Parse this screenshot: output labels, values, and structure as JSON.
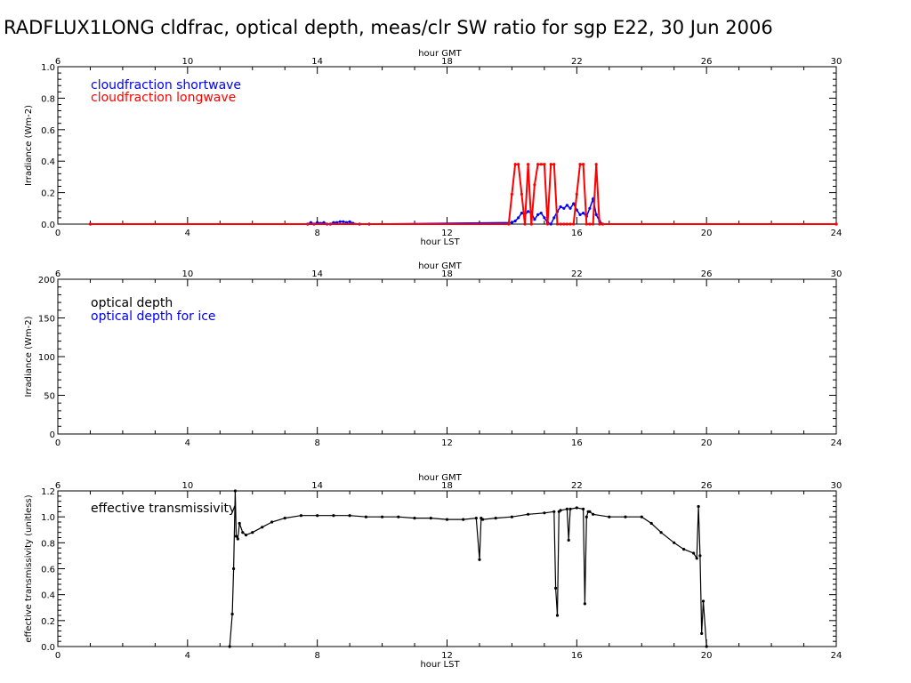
{
  "title": "RADFLUX1LONG cldfrac, optical depth, meas/clr SW ratio for sgp E22, 30 Jun 2006",
  "colors": {
    "shortwave": "#0000ff",
    "longwave": "#ff0000",
    "black": "#000000",
    "ice": "#0000ff"
  },
  "chart_data": [
    {
      "type": "line",
      "xlabel": "hour LST",
      "x2label": "hour GMT",
      "ylabel": "Irradiance (Wm-2)",
      "xlim": [
        0,
        24
      ],
      "x2lim": [
        6,
        30
      ],
      "ylim": [
        0,
        1.0
      ],
      "xticks": [
        "0",
        "4",
        "8",
        "12",
        "16",
        "20",
        "24"
      ],
      "x2ticks": [
        "6",
        "10",
        "14",
        "18",
        "22",
        "26",
        "30"
      ],
      "yticks": [
        "0.0",
        "0.2",
        "0.4",
        "0.6",
        "0.8",
        "1.0"
      ],
      "legend": [
        "cloudfraction shortwave",
        "cloudfraction longwave"
      ],
      "series": [
        {
          "name": "cloudfraction shortwave",
          "color": "#0000ff",
          "x": [
            1.0,
            7.7,
            7.8,
            7.9,
            8.0,
            8.1,
            8.2,
            8.3,
            8.4,
            8.5,
            8.6,
            8.7,
            8.8,
            8.9,
            9.0,
            9.1,
            9.3,
            9.6,
            14.0,
            14.1,
            14.2,
            14.3,
            14.4,
            14.5,
            14.6,
            14.7,
            14.8,
            14.9,
            15.0,
            15.1,
            15.2,
            15.3,
            15.4,
            15.5,
            15.6,
            15.7,
            15.8,
            15.9,
            16.0,
            16.1,
            16.2,
            16.3,
            16.4,
            16.5,
            16.6,
            16.7,
            16.8,
            24.0
          ],
          "y": [
            0,
            0,
            0.01,
            0,
            0.01,
            0.005,
            0.01,
            0,
            0,
            0.01,
            0.01,
            0.015,
            0.015,
            0.01,
            0.015,
            0.005,
            0,
            0,
            0.01,
            0.02,
            0.04,
            0.07,
            0.06,
            0.08,
            0.07,
            0.03,
            0.06,
            0.07,
            0.04,
            0.01,
            0,
            0.04,
            0.08,
            0.11,
            0.1,
            0.12,
            0.1,
            0.13,
            0.09,
            0.06,
            0.07,
            0.05,
            0.1,
            0.16,
            0.06,
            0.02,
            0,
            0
          ]
        },
        {
          "name": "cloudfraction longwave",
          "color": "#ff0000",
          "x": [
            1.0,
            13.9,
            14.0,
            14.1,
            14.2,
            14.3,
            14.4,
            14.5,
            14.6,
            14.7,
            14.8,
            14.9,
            15.0,
            15.1,
            15.2,
            15.3,
            15.4,
            15.5,
            15.6,
            15.7,
            15.8,
            15.9,
            16.0,
            16.1,
            16.2,
            16.3,
            16.4,
            16.5,
            16.6,
            16.7,
            16.8,
            24.0
          ],
          "y": [
            0,
            0,
            0.19,
            0.38,
            0.38,
            0.19,
            0,
            0.38,
            0,
            0.25,
            0.38,
            0.38,
            0.38,
            0,
            0.38,
            0.38,
            0,
            0,
            0,
            0,
            0,
            0,
            0.19,
            0.38,
            0.38,
            0,
            0,
            0,
            0.38,
            0,
            0,
            0
          ]
        }
      ]
    },
    {
      "type": "line",
      "xlabel": "",
      "x2label": "hour GMT",
      "ylabel": "Irradiance (Wm-2)",
      "xlim": [
        0,
        24
      ],
      "x2lim": [
        6,
        30
      ],
      "ylim": [
        0,
        200
      ],
      "xticks": [
        "0",
        "4",
        "8",
        "12",
        "16",
        "20",
        "24"
      ],
      "x2ticks": [
        "6",
        "10",
        "14",
        "18",
        "22",
        "26",
        "30"
      ],
      "yticks": [
        "0",
        "50",
        "100",
        "150",
        "200"
      ],
      "legend": [
        "optical depth",
        "optical depth for ice"
      ],
      "series": []
    },
    {
      "type": "line",
      "xlabel": "hour LST",
      "x2label": "hour GMT",
      "ylabel": "effective transmissivity (unitless)",
      "xlim": [
        0,
        24
      ],
      "x2lim": [
        6,
        30
      ],
      "ylim": [
        0,
        1.2
      ],
      "xticks": [
        "0",
        "4",
        "8",
        "12",
        "16",
        "20",
        "24"
      ],
      "x2ticks": [
        "6",
        "10",
        "14",
        "18",
        "22",
        "26",
        "30"
      ],
      "yticks": [
        "0.0",
        "0.2",
        "0.4",
        "0.6",
        "0.8",
        "1.0",
        "1.2"
      ],
      "legend": [
        "effective transmissivity"
      ],
      "series": [
        {
          "name": "effective transmissivity",
          "color": "#000000",
          "x": [
            5.3,
            5.38,
            5.42,
            5.47,
            5.5,
            5.55,
            5.6,
            5.7,
            5.8,
            6.0,
            6.3,
            6.6,
            7.0,
            7.5,
            8.0,
            8.5,
            9.0,
            9.5,
            10.0,
            10.5,
            11.0,
            11.5,
            12.0,
            12.5,
            12.9,
            13.0,
            13.05,
            13.1,
            13.5,
            14.0,
            14.5,
            15.0,
            15.3,
            15.35,
            15.4,
            15.45,
            15.5,
            15.7,
            15.75,
            15.8,
            16.0,
            16.2,
            16.25,
            16.3,
            16.35,
            16.4,
            16.5,
            17.0,
            17.5,
            18.0,
            18.3,
            18.6,
            19.0,
            19.3,
            19.6,
            19.7,
            19.75,
            19.8,
            19.85,
            19.9,
            20.0
          ],
          "y": [
            0,
            0.25,
            0.6,
            1.2,
            0.85,
            0.83,
            0.95,
            0.88,
            0.86,
            0.88,
            0.92,
            0.96,
            0.99,
            1.01,
            1.01,
            1.01,
            1.01,
            1.0,
            1.0,
            1.0,
            0.99,
            0.99,
            0.98,
            0.98,
            0.99,
            0.67,
            0.99,
            0.98,
            0.99,
            1.0,
            1.02,
            1.03,
            1.04,
            0.45,
            0.24,
            1.04,
            1.05,
            1.06,
            0.82,
            1.06,
            1.07,
            1.06,
            0.33,
            1.0,
            1.04,
            1.04,
            1.02,
            1.0,
            1.0,
            1.0,
            0.95,
            0.88,
            0.8,
            0.75,
            0.72,
            0.68,
            1.08,
            0.7,
            0.1,
            0.35,
            0.0
          ]
        }
      ]
    }
  ]
}
